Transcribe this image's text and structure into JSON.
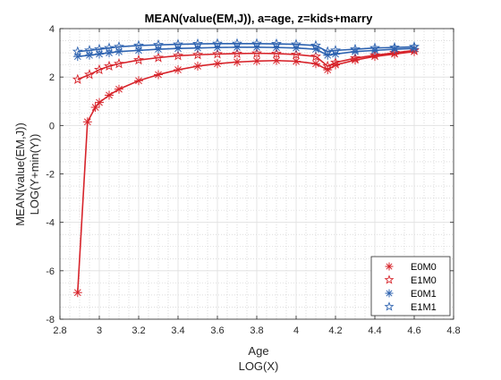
{
  "chart_data": {
    "type": "line",
    "title": "MEAN(value(EM,J)), a=age, z=kids+marry",
    "xlabel": [
      "Age",
      "LOG(X)"
    ],
    "ylabel": [
      "MEAN(value(EM,J))",
      "LOG(Y+min(Y))"
    ],
    "xlim": [
      2.8,
      4.8
    ],
    "ylim": [
      -8,
      4
    ],
    "xticks": [
      "2.8",
      "3",
      "3.2",
      "3.4",
      "3.6",
      "3.8",
      "4",
      "4.2",
      "4.4",
      "4.6",
      "4.8"
    ],
    "yticks": [
      "4",
      "2",
      "0",
      "-2",
      "-4",
      "-6",
      "-8"
    ],
    "grid": true,
    "minor_grid": true,
    "legend_position": "bottom-right",
    "colors": {
      "red": "#d7242b",
      "blue": "#2e63b0",
      "grid": "#dfdfdf",
      "minor_grid": "#c8c8c8",
      "axis": "#262626"
    },
    "series": [
      {
        "name": "E0M0",
        "marker": "asterisk",
        "color": "#d7242b",
        "x": [
          2.89,
          2.94,
          2.98,
          3.0,
          3.05,
          3.1,
          3.2,
          3.3,
          3.4,
          3.5,
          3.6,
          3.7,
          3.8,
          3.9,
          4.0,
          4.1,
          4.16,
          4.2,
          4.3,
          4.4,
          4.5,
          4.6
        ],
        "y": [
          -6.9,
          0.15,
          0.75,
          0.95,
          1.25,
          1.5,
          1.85,
          2.1,
          2.3,
          2.45,
          2.55,
          2.62,
          2.66,
          2.68,
          2.65,
          2.55,
          2.3,
          2.5,
          2.7,
          2.85,
          2.95,
          3.05
        ]
      },
      {
        "name": "E1M0",
        "marker": "star",
        "color": "#d7242b",
        "x": [
          2.89,
          2.95,
          3.0,
          3.05,
          3.1,
          3.2,
          3.3,
          3.4,
          3.5,
          3.6,
          3.7,
          3.8,
          3.9,
          4.0,
          4.1,
          4.16,
          4.2,
          4.3,
          4.4,
          4.5,
          4.6
        ],
        "y": [
          1.9,
          2.1,
          2.3,
          2.45,
          2.55,
          2.7,
          2.8,
          2.88,
          2.92,
          2.95,
          2.97,
          2.98,
          2.97,
          2.93,
          2.85,
          2.45,
          2.6,
          2.78,
          2.9,
          3.0,
          3.1
        ]
      },
      {
        "name": "E0M1",
        "marker": "asterisk",
        "color": "#2e63b0",
        "x": [
          2.89,
          2.95,
          3.0,
          3.05,
          3.1,
          3.2,
          3.3,
          3.4,
          3.5,
          3.6,
          3.7,
          3.8,
          3.9,
          4.0,
          4.1,
          4.16,
          4.2,
          4.3,
          4.4,
          4.5,
          4.6
        ],
        "y": [
          2.85,
          2.9,
          2.95,
          3.0,
          3.05,
          3.1,
          3.15,
          3.18,
          3.2,
          3.22,
          3.23,
          3.23,
          3.22,
          3.2,
          3.15,
          2.9,
          2.95,
          3.05,
          3.1,
          3.15,
          3.18
        ]
      },
      {
        "name": "E1M1",
        "marker": "star",
        "color": "#2e63b0",
        "x": [
          2.89,
          2.95,
          3.0,
          3.05,
          3.1,
          3.2,
          3.3,
          3.4,
          3.5,
          3.6,
          3.7,
          3.8,
          3.9,
          4.0,
          4.1,
          4.16,
          4.2,
          4.3,
          4.4,
          4.5,
          4.6
        ],
        "y": [
          3.05,
          3.1,
          3.15,
          3.2,
          3.25,
          3.3,
          3.33,
          3.35,
          3.37,
          3.38,
          3.38,
          3.38,
          3.37,
          3.35,
          3.3,
          3.05,
          3.1,
          3.15,
          3.2,
          3.22,
          3.25
        ]
      }
    ]
  }
}
